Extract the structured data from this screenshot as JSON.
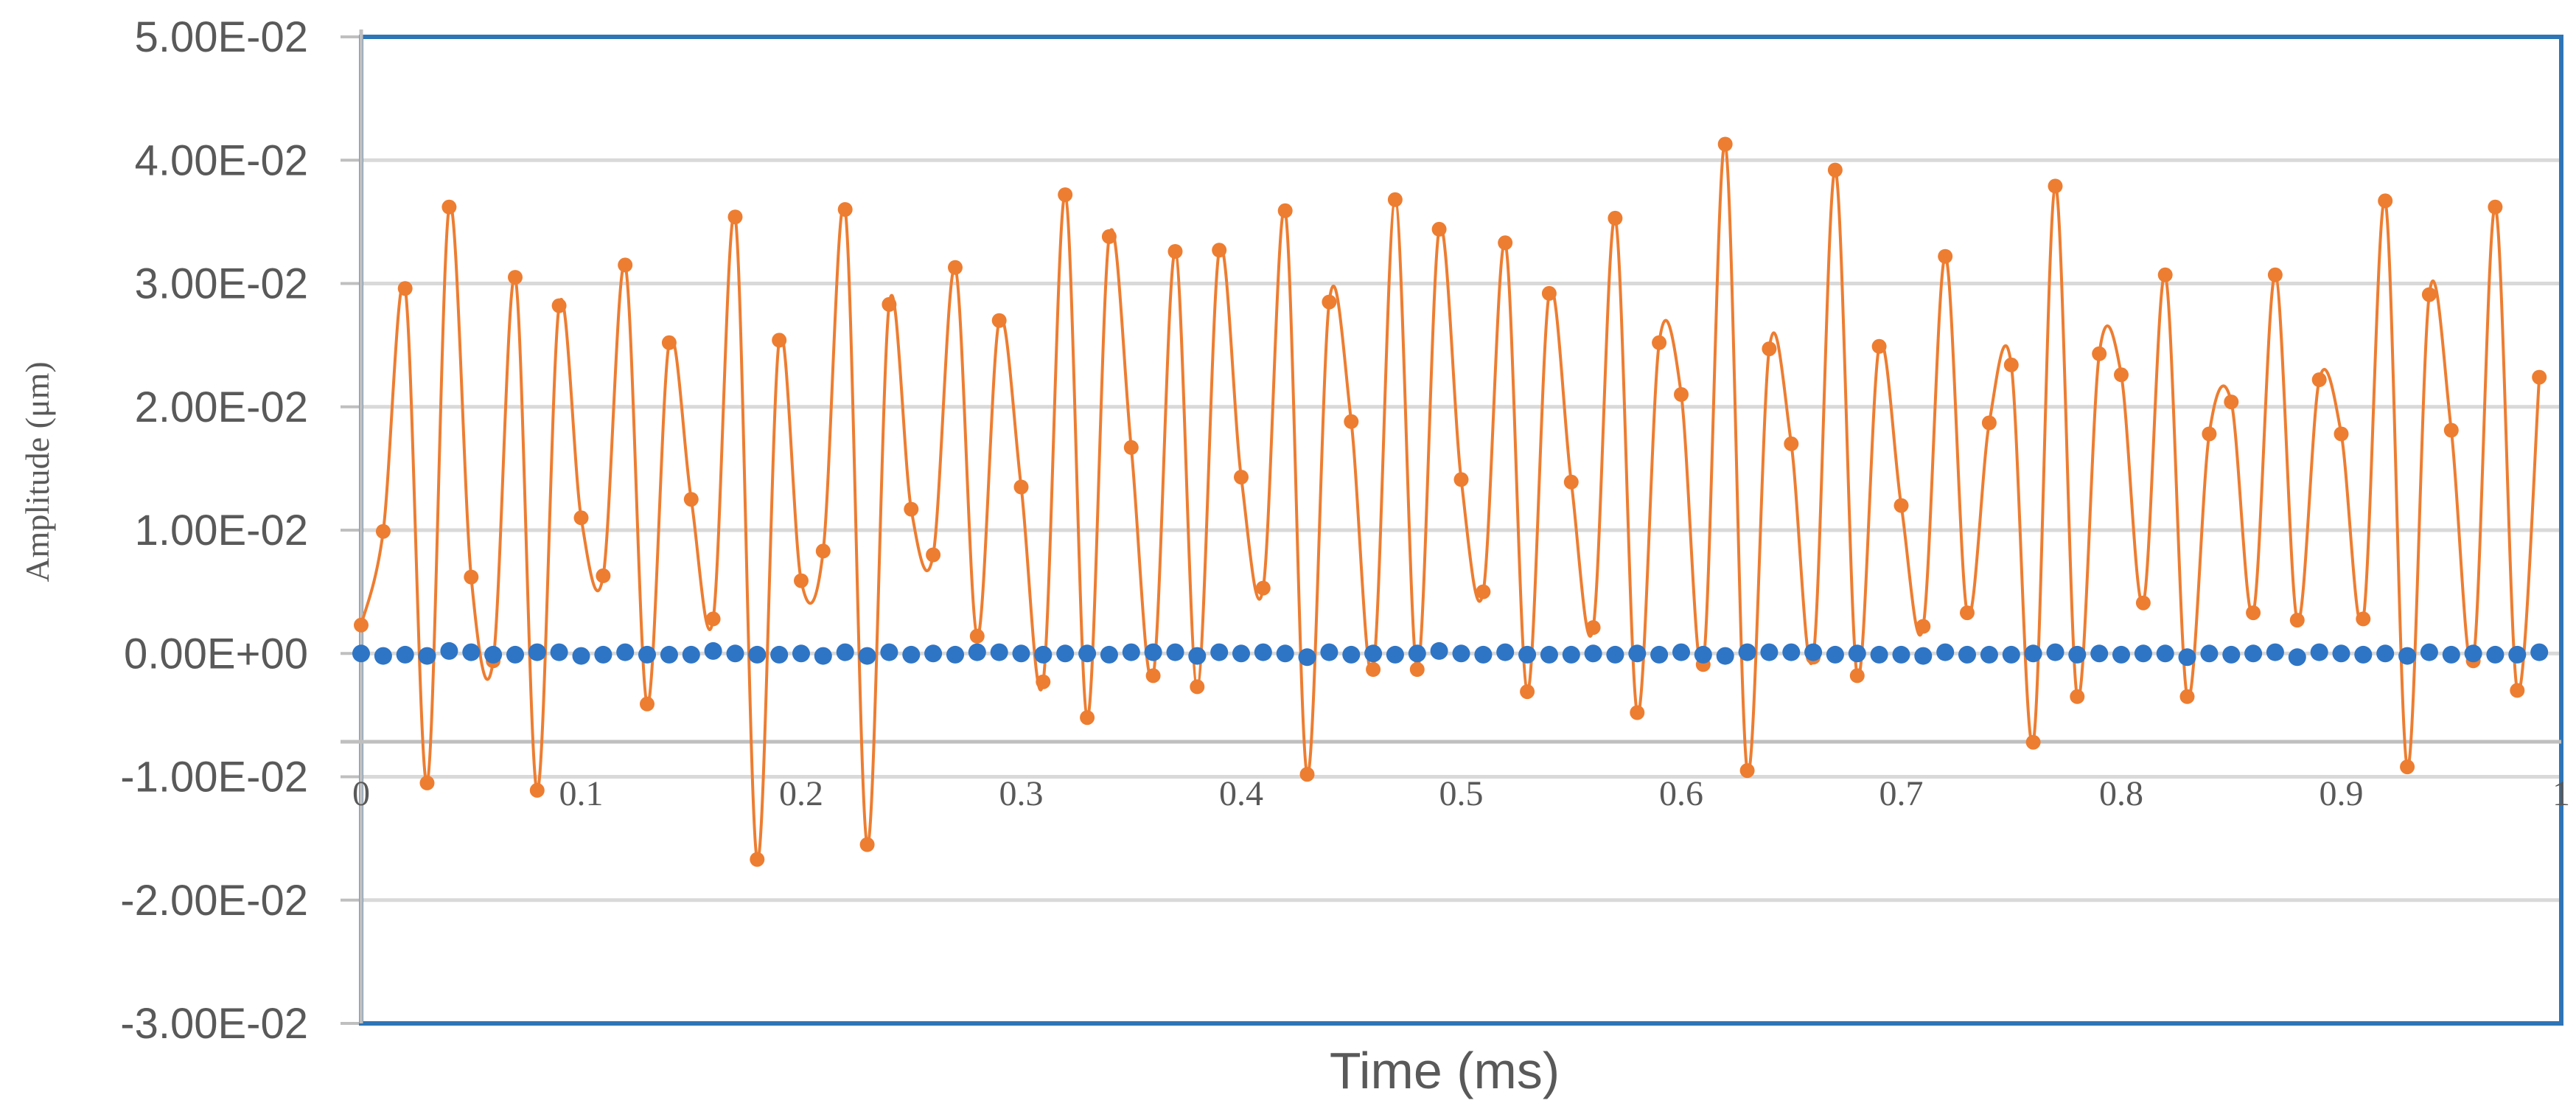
{
  "chart_data": {
    "type": "line",
    "title": "",
    "xlabel": "Time (ms)",
    "ylabel": "Amplitude (μm)",
    "xlim": [
      0,
      1
    ],
    "ylim": [
      -0.03,
      0.05
    ],
    "x_ticks": [
      "0",
      "0.1",
      "0.2",
      "0.3",
      "0.4",
      "0.5",
      "0.6",
      "0.7",
      "0.8",
      "0.9",
      "1"
    ],
    "x_tick_values": [
      0,
      0.1,
      0.2,
      0.3,
      0.4,
      0.5,
      0.6,
      0.7,
      0.8,
      0.9,
      1
    ],
    "y_ticks": [
      "5.00E-02",
      "4.00E-02",
      "3.00E-02",
      "2.00E-02",
      "1.00E-02",
      "0.00E+00",
      "-1.00E-02",
      "-2.00E-02",
      "-3.00E-02"
    ],
    "y_tick_values": [
      0.05,
      0.04,
      0.03,
      0.02,
      0.01,
      0,
      -0.01,
      -0.02,
      -0.03
    ],
    "grid": true,
    "x": [
      0,
      0.01,
      0.02,
      0.03,
      0.04,
      0.05,
      0.06,
      0.07,
      0.08,
      0.09,
      0.1,
      0.11,
      0.12,
      0.13,
      0.14,
      0.15,
      0.16,
      0.17,
      0.18,
      0.19,
      0.2,
      0.21,
      0.22,
      0.23,
      0.24,
      0.25,
      0.26,
      0.27,
      0.28,
      0.29,
      0.3,
      0.31,
      0.32,
      0.33,
      0.34,
      0.35,
      0.36,
      0.37,
      0.38,
      0.39,
      0.4,
      0.41,
      0.42,
      0.43,
      0.44,
      0.45,
      0.46,
      0.47,
      0.48,
      0.49,
      0.5,
      0.51,
      0.52,
      0.53,
      0.54,
      0.55,
      0.56,
      0.57,
      0.58,
      0.59,
      0.6,
      0.61,
      0.62,
      0.63,
      0.64,
      0.65,
      0.66,
      0.67,
      0.68,
      0.69,
      0.7,
      0.71,
      0.72,
      0.73,
      0.74,
      0.75,
      0.76,
      0.77,
      0.78,
      0.79,
      0.8,
      0.81,
      0.82,
      0.83,
      0.84,
      0.85,
      0.86,
      0.87,
      0.88,
      0.89,
      0.9,
      0.91,
      0.92,
      0.93,
      0.94,
      0.95,
      0.96,
      0.97,
      0.98,
      0.99
    ],
    "series": [
      {
        "color": "#ED7D31",
        "style": "smooth line with markers",
        "values": [
          0.0023,
          0.0099,
          0.0296,
          -0.0105,
          0.0362,
          0.0062,
          -0.0006,
          0.0305,
          -0.0111,
          0.0282,
          0.011,
          0.0063,
          0.0315,
          -0.0041,
          0.0252,
          0.0125,
          0.0028,
          0.0354,
          -0.0167,
          0.0254,
          0.0059,
          0.0083,
          0.036,
          -0.0155,
          0.0283,
          0.0117,
          0.008,
          0.0313,
          0.0014,
          0.027,
          0.0135,
          -0.0023,
          0.0372,
          -0.0052,
          0.0338,
          0.0167,
          -0.0018,
          0.0326,
          -0.0027,
          0.0327,
          0.0143,
          0.0053,
          0.0359,
          -0.0098,
          0.0285,
          0.0188,
          -0.0013,
          0.0368,
          -0.0013,
          0.0344,
          0.0141,
          0.005,
          0.0333,
          -0.0031,
          0.0292,
          0.0139,
          0.0021,
          0.0353,
          -0.0048,
          0.0252,
          0.021,
          -0.0009,
          0.0413,
          -0.0095,
          0.0247,
          0.017,
          -0.0003,
          0.0392,
          -0.0018,
          0.0249,
          0.012,
          0.0022,
          0.0322,
          0.0033,
          0.0187,
          0.0234,
          -0.0072,
          0.0379,
          -0.0035,
          0.0243,
          0.0226,
          0.0041,
          0.0307,
          -0.0035,
          0.0178,
          0.0204,
          0.0033,
          0.0307,
          0.0027,
          0.0222,
          0.0178,
          0.0028,
          0.0367,
          -0.0092,
          0.0291,
          0.0181,
          -0.0006,
          0.0362,
          -0.003,
          0.0224
        ]
      },
      {
        "color": "#2E75C6",
        "style": "markers only",
        "values": [
          0,
          -0.0002,
          -0.0001,
          -0.0002,
          0.0002,
          0.0001,
          -0.0001,
          -0.0001,
          0.0001,
          0.0001,
          -0.0002,
          -0.0001,
          0.0001,
          -0.0001,
          -0.0001,
          -0.0001,
          0.0002,
          0,
          -0.0001,
          -0.0001,
          0,
          -0.0002,
          0.0001,
          -0.0002,
          0.0001,
          -0.0001,
          0,
          -0.0001,
          0.0001,
          0.0001,
          0,
          -0.0001,
          0,
          0,
          -0.0001,
          0.0001,
          0.0001,
          0.0001,
          -0.0002,
          0.0001,
          0,
          0.0001,
          0,
          -0.0003,
          0.0001,
          -0.0001,
          0,
          -0.0001,
          0,
          0.0002,
          0,
          -0.0001,
          0.0001,
          -0.0001,
          -0.0001,
          -0.0001,
          0,
          -0.0001,
          0,
          -0.0001,
          0.0001,
          -0.0001,
          -0.0002,
          0.0001,
          0.0001,
          0.0001,
          0.0001,
          -0.0001,
          0,
          -0.0001,
          -0.0001,
          -0.0002,
          0.0001,
          -0.0001,
          -0.0001,
          -0.0001,
          0,
          0.0001,
          -0.0001,
          0,
          -0.0001,
          0,
          0,
          -0.0003,
          0,
          -0.0001,
          0,
          0.0001,
          -0.0003,
          0.0001,
          0,
          -0.0001,
          0,
          -0.0002,
          0.0001,
          -0.0001,
          0,
          -0.0001,
          -0.0001,
          0.0001
        ]
      }
    ]
  }
}
